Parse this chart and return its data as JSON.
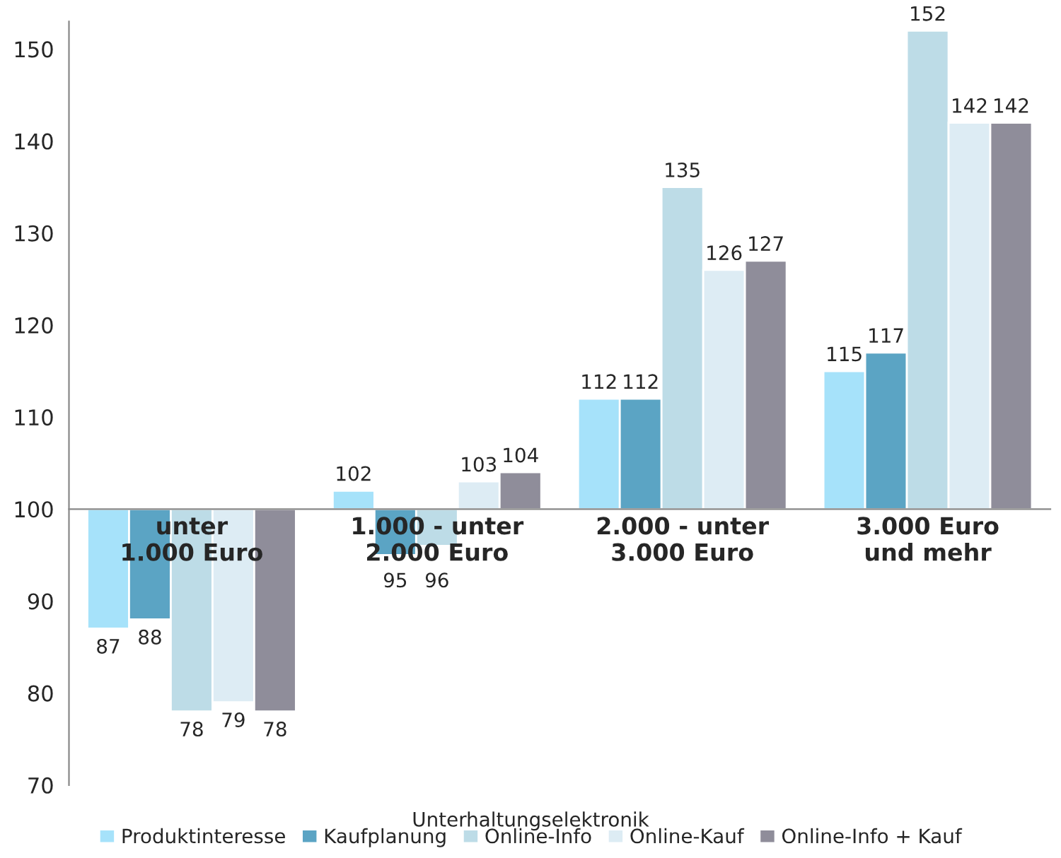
{
  "chart_data": {
    "type": "bar",
    "xlabel": "Unterhaltungselektronik",
    "categories": [
      "unter 1.000 Euro",
      "1.000 - unter 2.000 Euro",
      "2.000 - unter 3.000 Euro",
      "3.000 Euro und mehr"
    ],
    "series": [
      {
        "name": "Produktinteresse",
        "color": "#a6e2fa",
        "base": [
          100,
          100,
          100,
          100
        ],
        "values": [
          -13,
          2,
          12,
          15
        ],
        "value_labels": [
          "87",
          "102",
          "112",
          "115"
        ]
      },
      {
        "name": "Kaufplanung",
        "color": "#5ba4c4",
        "base": [
          100,
          100,
          100,
          100
        ],
        "values": [
          -12,
          -5,
          12,
          17
        ],
        "value_labels": [
          "88",
          "95",
          "112",
          "117"
        ]
      },
      {
        "name": "Online-Info",
        "color": "#bddce7",
        "base": [
          100,
          100,
          100,
          100
        ],
        "values": [
          -22,
          -4,
          35,
          52
        ],
        "value_labels": [
          "78",
          "96",
          "135",
          "152"
        ]
      },
      {
        "name": "Online-Kauf",
        "color": "#ddecf4",
        "base": [
          100,
          100,
          100,
          100
        ],
        "values": [
          -21,
          3,
          26,
          42
        ],
        "value_labels": [
          "79",
          "103",
          "126",
          "142"
        ]
      },
      {
        "name": "Online-Info + Kauf",
        "color": "#8f8d9a",
        "base": [
          100,
          100,
          100,
          100
        ],
        "values": [
          -22,
          4,
          27,
          42
        ],
        "value_labels": [
          "78",
          "104",
          "127",
          "142"
        ]
      }
    ],
    "ylim": [
      70,
      153
    ],
    "yticks": [
      70,
      80,
      90,
      100,
      110,
      120,
      130,
      140,
      150
    ],
    "grid": false,
    "legend": "bottom"
  }
}
